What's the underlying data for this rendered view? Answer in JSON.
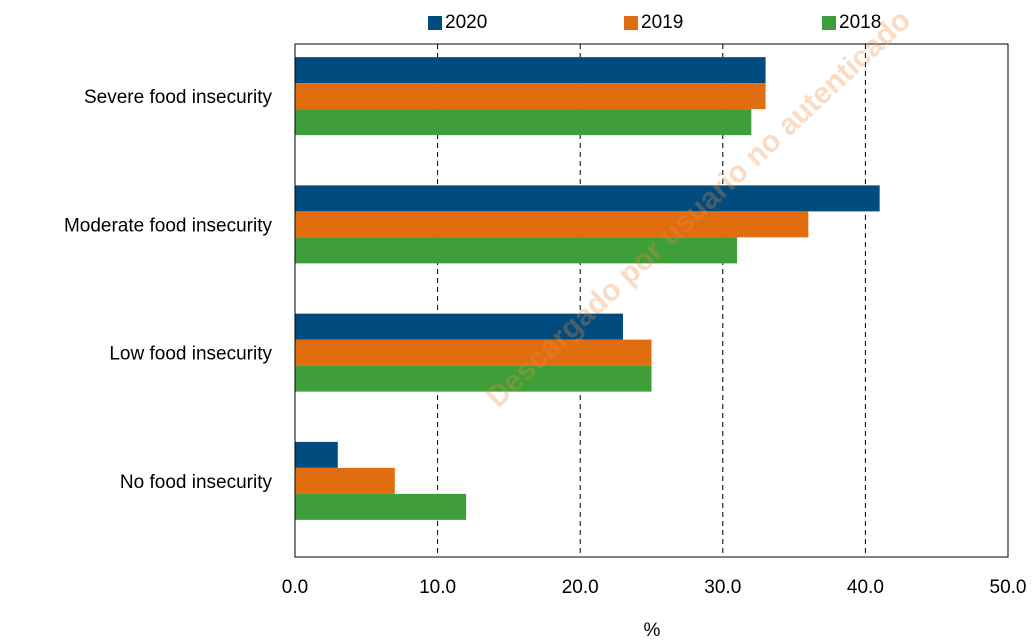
{
  "chart_data": {
    "type": "bar",
    "orientation": "horizontal",
    "categories": [
      "Severe food insecurity",
      "Moderate food insecurity",
      "Low food insecurity",
      "No food insecurity"
    ],
    "series": [
      {
        "name": "2020",
        "color": "#004c7f",
        "values": [
          33.0,
          41.0,
          23.0,
          3.0
        ]
      },
      {
        "name": "2019",
        "color": "#e06d10",
        "values": [
          33.0,
          36.0,
          25.0,
          7.0
        ]
      },
      {
        "name": "2018",
        "color": "#3e9e39",
        "values": [
          32.0,
          31.0,
          25.0,
          12.0
        ]
      }
    ],
    "xlabel": "%",
    "xlim": [
      0,
      50
    ],
    "xticks": [
      "0.0",
      "10.0",
      "20.0",
      "30.0",
      "40.0",
      "50.0"
    ],
    "grid": "vertical dashed",
    "legend": "top"
  },
  "watermark": "Descargado por usuario no autenticado"
}
